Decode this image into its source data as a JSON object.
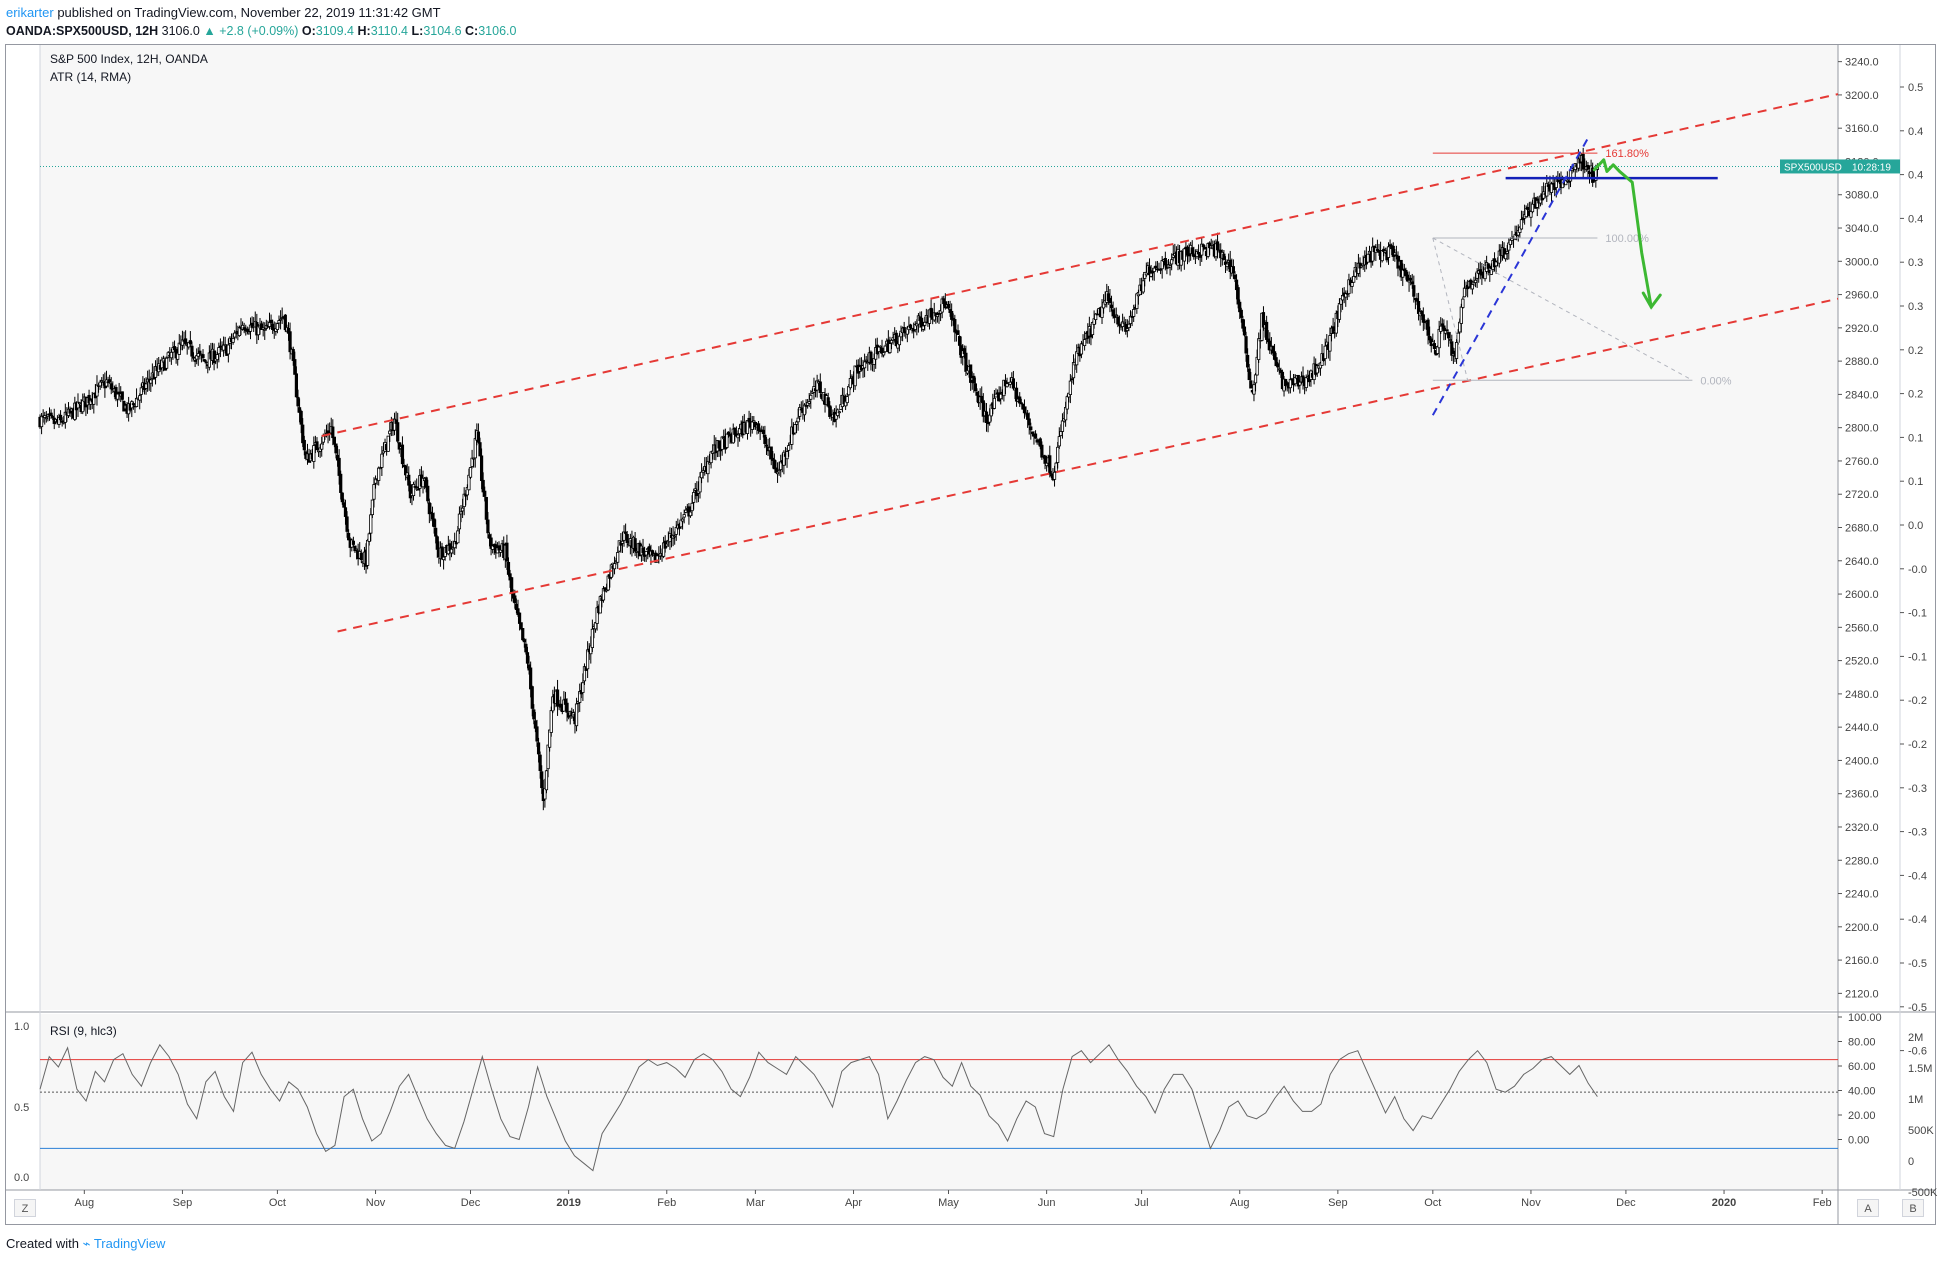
{
  "header": {
    "author": "erikarter",
    "published_text": "published on TradingView.com, November 22, 2019 11:31:42 GMT",
    "symbol": "OANDA:SPX500USD, 12H",
    "last": "3106.0",
    "change": "▲ +2.8 (+0.09%)",
    "o_label": "O:",
    "o_value": "3109.4",
    "h_label": "H:",
    "h_value": "3110.4",
    "l_label": "L:",
    "l_value": "3104.6",
    "c_label": "C:",
    "c_value": "3106.0"
  },
  "footer": {
    "created_with": "Created with",
    "brand": "TradingView"
  },
  "buttons": {
    "z": "Z",
    "a": "A",
    "b": "B"
  },
  "colors": {
    "bull": "#26a69a",
    "channel": "#e53935",
    "trend": "#2a35d6",
    "level": "#1320b8",
    "projection": "#3cb832",
    "rsi": "#666666"
  },
  "chart_data": [
    {
      "type": "candlestick",
      "title": "S&P 500 Index, 12H, OANDA",
      "indicator_label": "ATR (14, RMA)",
      "x_ticks": [
        "Aug",
        "Sep",
        "Oct",
        "Nov",
        "Dec",
        "2019",
        "Feb",
        "Mar",
        "Apr",
        "May",
        "Jun",
        "Jul",
        "Aug",
        "Sep",
        "Oct",
        "Nov",
        "Dec",
        "2020",
        "Feb"
      ],
      "y_ticks": [
        "3240.0",
        "3200.0",
        "3160.0",
        "3120.0",
        "3080.0",
        "3040.0",
        "3000.0",
        "2960.0",
        "2920.0",
        "2880.0",
        "2840.0",
        "2800.0",
        "2760.0",
        "2720.0",
        "2680.0",
        "2640.0",
        "2600.0",
        "2560.0",
        "2520.0",
        "2480.0",
        "2440.0",
        "2400.0",
        "2360.0",
        "2320.0",
        "2280.0",
        "2240.0",
        "2200.0",
        "2160.0",
        "2120.0"
      ],
      "y_ticks_atr": [
        "0.5",
        "0.4",
        "0.4",
        "0.4",
        "0.3",
        "0.3",
        "0.2",
        "0.2",
        "0.1",
        "0.1",
        "0.0",
        "-0.0",
        "-0.1",
        "-0.1",
        "-0.2",
        "-0.2",
        "-0.3",
        "-0.3",
        "-0.4",
        "-0.4",
        "-0.5",
        "-0.5",
        "-0.6"
      ],
      "ylim": [
        2100,
        3260
      ],
      "price_label": "SPX500USD",
      "price_time": "10:28:19",
      "price_level": 3114,
      "close_path": [
        [
          "2018-07-18",
          2810
        ],
        [
          "2018-07-24",
          2805
        ],
        [
          "2018-08-01",
          2830
        ],
        [
          "2018-08-08",
          2855
        ],
        [
          "2018-08-15",
          2820
        ],
        [
          "2018-08-22",
          2860
        ],
        [
          "2018-09-01",
          2900
        ],
        [
          "2018-09-08",
          2880
        ],
        [
          "2018-09-15",
          2895
        ],
        [
          "2018-09-20",
          2925
        ],
        [
          "2018-09-27",
          2915
        ],
        [
          "2018-10-03",
          2935
        ],
        [
          "2018-10-05",
          2900
        ],
        [
          "2018-10-10",
          2760
        ],
        [
          "2018-10-12",
          2770
        ],
        [
          "2018-10-18",
          2800
        ],
        [
          "2018-10-24",
          2660
        ],
        [
          "2018-10-29",
          2640
        ],
        [
          "2018-11-01",
          2740
        ],
        [
          "2018-11-07",
          2810
        ],
        [
          "2018-11-12",
          2720
        ],
        [
          "2018-11-16",
          2740
        ],
        [
          "2018-11-21",
          2650
        ],
        [
          "2018-11-26",
          2660
        ],
        [
          "2018-12-03",
          2790
        ],
        [
          "2018-12-07",
          2660
        ],
        [
          "2018-12-12",
          2650
        ],
        [
          "2018-12-14",
          2600
        ],
        [
          "2018-12-19",
          2520
        ],
        [
          "2018-12-24",
          2350
        ],
        [
          "2018-12-27",
          2480
        ],
        [
          "2019-01-03",
          2450
        ],
        [
          "2019-01-10",
          2580
        ],
        [
          "2019-01-18",
          2670
        ],
        [
          "2019-01-28",
          2640
        ],
        [
          "2019-02-08",
          2700
        ],
        [
          "2019-02-15",
          2770
        ],
        [
          "2019-02-22",
          2790
        ],
        [
          "2019-03-01",
          2810
        ],
        [
          "2019-03-08",
          2745
        ],
        [
          "2019-03-15",
          2820
        ],
        [
          "2019-03-21",
          2850
        ],
        [
          "2019-03-26",
          2810
        ],
        [
          "2019-04-02",
          2870
        ],
        [
          "2019-04-12",
          2900
        ],
        [
          "2019-04-23",
          2930
        ],
        [
          "2019-04-30",
          2950
        ],
        [
          "2019-05-07",
          2870
        ],
        [
          "2019-05-13",
          2810
        ],
        [
          "2019-05-20",
          2860
        ],
        [
          "2019-05-27",
          2800
        ],
        [
          "2019-06-03",
          2745
        ],
        [
          "2019-06-10",
          2880
        ],
        [
          "2019-06-20",
          2955
        ],
        [
          "2019-06-26",
          2915
        ],
        [
          "2019-07-03",
          2990
        ],
        [
          "2019-07-15",
          3010
        ],
        [
          "2019-07-24",
          3015
        ],
        [
          "2019-07-30",
          2990
        ],
        [
          "2019-08-05",
          2840
        ],
        [
          "2019-08-08",
          2930
        ],
        [
          "2019-08-12",
          2880
        ],
        [
          "2019-08-15",
          2850
        ],
        [
          "2019-08-23",
          2860
        ],
        [
          "2019-08-28",
          2890
        ],
        [
          "2019-09-05",
          2980
        ],
        [
          "2019-09-12",
          3010
        ],
        [
          "2019-09-18",
          3010
        ],
        [
          "2019-09-24",
          2970
        ],
        [
          "2019-10-02",
          2890
        ],
        [
          "2019-10-04",
          2930
        ],
        [
          "2019-10-08",
          2880
        ],
        [
          "2019-10-11",
          2970
        ],
        [
          "2019-10-18",
          2990
        ],
        [
          "2019-10-25",
          3020
        ],
        [
          "2019-11-01",
          3065
        ],
        [
          "2019-11-07",
          3090
        ],
        [
          "2019-11-12",
          3095
        ],
        [
          "2019-11-15",
          3118
        ],
        [
          "2019-11-18",
          3120
        ],
        [
          "2019-11-21",
          3100
        ],
        [
          "2019-11-22",
          3106
        ]
      ],
      "channel_upper": [
        [
          "2018-10-15",
          2790
        ],
        [
          "2020-02-06",
          3201
        ]
      ],
      "channel_lower": [
        [
          "2018-10-20",
          2555
        ],
        [
          "2020-02-06",
          2955
        ]
      ],
      "fib_levels": [
        {
          "label": "161.80%",
          "value": 3130,
          "from": "2019-10-01",
          "to": "2019-11-22"
        },
        {
          "label": "100.00%",
          "value": 3028,
          "from": "2019-10-01",
          "to": "2019-11-22"
        },
        {
          "label": "0.00%",
          "value": 2857,
          "from": "2019-10-01",
          "to": "2019-12-22"
        }
      ],
      "horizontal_level": {
        "value": 3100,
        "from": "2019-10-24",
        "to": "2019-12-30"
      },
      "trendline": [
        [
          "2019-10-01",
          2815
        ],
        [
          "2019-11-19",
          3148
        ]
      ],
      "projection_path": [
        [
          "2019-11-21",
          3110
        ],
        [
          "2019-11-24",
          3122
        ],
        [
          "2019-11-25",
          3108
        ],
        [
          "2019-11-27",
          3116
        ],
        [
          "2019-11-29",
          3108
        ],
        [
          "2019-12-03",
          3095
        ],
        [
          "2019-12-06",
          3010
        ],
        [
          "2019-12-09",
          2945
        ]
      ]
    },
    {
      "type": "line",
      "title": "RSI (9, hlc3)",
      "ylim": [
        0,
        100
      ],
      "y_ticks_left": [
        "1.0",
        "0.5",
        "0.0"
      ],
      "y_ticks_right": [
        "100.00",
        "80.00",
        "60.00",
        "40.00",
        "20.00",
        "0.00"
      ],
      "y_ticks_volume": [
        "2M",
        "1.5M",
        "1M",
        "500K",
        "0",
        "-500K"
      ],
      "bands": [
        80,
        58,
        20
      ],
      "series": [
        {
          "values": [
            60,
            82,
            75,
            88,
            60,
            52,
            72,
            65,
            80,
            84,
            70,
            62,
            78,
            90,
            82,
            70,
            50,
            40,
            65,
            72,
            55,
            45,
            78,
            85,
            70,
            60,
            52,
            65,
            60,
            48,
            30,
            18,
            22,
            55,
            60,
            40,
            25,
            30,
            45,
            62,
            70,
            55,
            40,
            30,
            22,
            20,
            38,
            60,
            82,
            60,
            40,
            28,
            26,
            48,
            75,
            55,
            40,
            25,
            15,
            10,
            5,
            30,
            40,
            50,
            62,
            75,
            80,
            76,
            78,
            74,
            68,
            80,
            84,
            80,
            72,
            60,
            55,
            68,
            85,
            78,
            74,
            70,
            82,
            76,
            70,
            60,
            48,
            72,
            78,
            80,
            82,
            70,
            40,
            52,
            66,
            78,
            82,
            80,
            68,
            62,
            78,
            62,
            56,
            42,
            36,
            25,
            40,
            52,
            48,
            30,
            28,
            60,
            82,
            86,
            78,
            84,
            90,
            80,
            72,
            62,
            55,
            44,
            60,
            70,
            70,
            60,
            40,
            20,
            32,
            48,
            52,
            42,
            40,
            44,
            54,
            62,
            52,
            45,
            45,
            50,
            70,
            80,
            84,
            86,
            72,
            58,
            44,
            55,
            40,
            32,
            42,
            40,
            50,
            60,
            72,
            80,
            86,
            78,
            60,
            58,
            62,
            70,
            74,
            80,
            82,
            76,
            70,
            76,
            64,
            55
          ]
        }
      ]
    }
  ]
}
